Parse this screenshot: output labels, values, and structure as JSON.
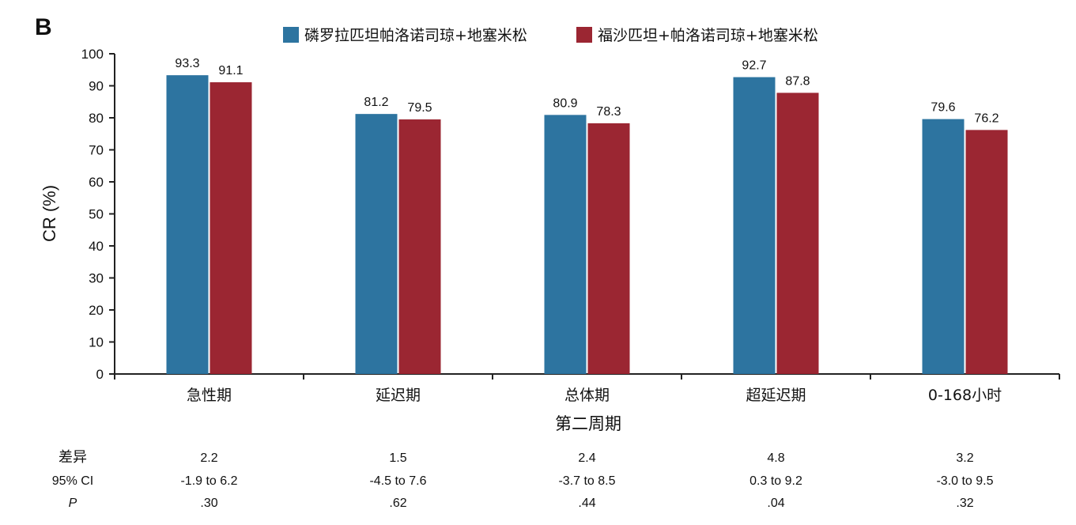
{
  "panel_label": "B",
  "colors": {
    "series1": "#2d74a0",
    "series2": "#9b2632",
    "axis": "#222222"
  },
  "chart_data": {
    "type": "bar",
    "title": "",
    "xlabel": "第二周期",
    "ylabel": "CR (%)",
    "ylim": [
      0,
      100
    ],
    "yticks": [
      0,
      10,
      20,
      30,
      40,
      50,
      60,
      70,
      80,
      90,
      100
    ],
    "categories": [
      "急性期",
      "延迟期",
      "总体期",
      "超延迟期",
      "0-168小时"
    ],
    "series": [
      {
        "name": "磷罗拉匹坦帕洛诺司琼+地塞米松",
        "values": [
          93.3,
          81.2,
          80.9,
          92.7,
          79.6
        ],
        "labels": [
          "93.3",
          "81.2",
          "80.9",
          "92.7",
          "79.6"
        ]
      },
      {
        "name": "福沙匹坦+帕洛诺司琼+地塞米松",
        "values": [
          91.1,
          79.5,
          78.3,
          87.8,
          76.2
        ],
        "labels": [
          "91.1",
          "79.5",
          "78.3",
          "87.8",
          "76.2"
        ]
      }
    ],
    "legend_position": "top",
    "grid": false
  },
  "stats": {
    "rows": [
      {
        "label": "差异",
        "values": [
          "2.2",
          "1.5",
          "2.4",
          "4.8",
          "3.2"
        ]
      },
      {
        "label": "95% CI",
        "values": [
          "-1.9 to 6.2",
          "-4.5 to 7.6",
          "-3.7 to 8.5",
          "0.3 to 9.2",
          "-3.0 to 9.5"
        ]
      },
      {
        "label": "P",
        "values": [
          ".30",
          ".62",
          ".44",
          ".04",
          ".32"
        ]
      }
    ]
  }
}
